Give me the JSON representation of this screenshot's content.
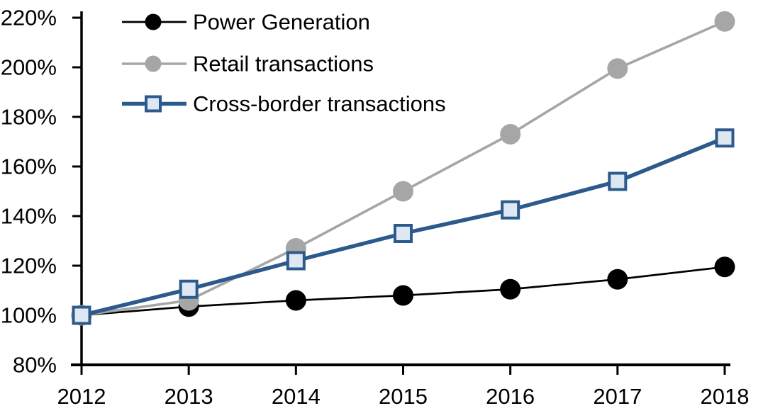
{
  "chart_data": {
    "type": "line",
    "title": "",
    "xlabel": "",
    "ylabel": "",
    "categories": [
      "2012",
      "2013",
      "2014",
      "2015",
      "2016",
      "2017",
      "2018"
    ],
    "y_axis": {
      "min": 80,
      "max": 220,
      "step": 20,
      "tick_labels": [
        "80%",
        "100%",
        "120%",
        "140%",
        "160%",
        "180%",
        "200%",
        "220%"
      ],
      "format": "percent"
    },
    "grid": false,
    "legend_position": "top-left-inside",
    "series": [
      {
        "name": "Power Generation",
        "values": [
          100,
          103.5,
          106,
          108,
          110.5,
          114.5,
          119.5
        ],
        "color": "#000000",
        "line_width": 2.7,
        "marker": "circle",
        "marker_fill": "#000000",
        "marker_stroke": "none"
      },
      {
        "name": "Retail transactions",
        "values": [
          100,
          106,
          127,
          150,
          173,
          199.5,
          218.5
        ],
        "color": "#A6A6A6",
        "line_width": 3.6,
        "marker": "circle",
        "marker_fill": "#A6A6A6",
        "marker_stroke": "none"
      },
      {
        "name": "Cross-border transactions",
        "values": [
          100,
          110.5,
          122,
          133,
          142.5,
          154,
          171.5
        ],
        "color": "#2C5A8C",
        "line_width": 5.5,
        "marker": "square",
        "marker_fill": "#DEE8F3",
        "marker_stroke": "#2C5A8C"
      }
    ],
    "axis_color": "#000000"
  }
}
